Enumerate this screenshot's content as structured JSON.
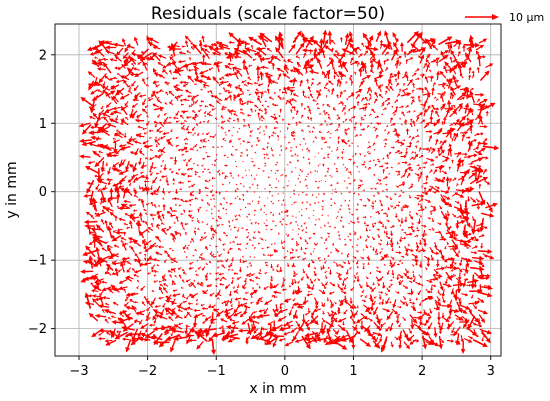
{
  "chart_data": {
    "type": "quiver",
    "title": "Residuals (scale factor=50)",
    "xlabel": "x in mm",
    "ylabel": "y in mm",
    "xlim": [
      -3.35,
      3.15
    ],
    "ylim": [
      -2.4,
      2.45
    ],
    "xticks": [
      -3,
      -2,
      -1,
      0,
      1,
      2,
      3
    ],
    "xtick_labels": [
      "−3",
      "−2",
      "−1",
      "0",
      "1",
      "2",
      "3"
    ],
    "yticks": [
      -2,
      -1,
      0,
      1,
      2
    ],
    "ytick_labels": [
      "−2",
      "−1",
      "0",
      "1",
      "2"
    ],
    "grid": true,
    "scale_factor": 50,
    "region": {
      "x": [
        -2.85,
        2.95
      ],
      "y": [
        -2.2,
        2.2
      ]
    },
    "arrow_color": "#ff0000",
    "reference_arrow": {
      "label": "10 µm",
      "length_um": 10
    },
    "vectors": [
      {
        "x": -2.8,
        "y": 1.9,
        "dx": 12,
        "dy": -4
      },
      {
        "x": -2.6,
        "y": 1.4,
        "dx": 10,
        "dy": 6
      },
      {
        "x": -2.4,
        "y": -1.9,
        "dx": 14,
        "dy": 5
      },
      {
        "x": -2.2,
        "y": 2.1,
        "dx": -8,
        "dy": 3
      },
      {
        "x": -1.9,
        "y": 1.2,
        "dx": 11,
        "dy": 2
      },
      {
        "x": -1.7,
        "y": -1.7,
        "dx": 9,
        "dy": -7
      },
      {
        "x": -1.5,
        "y": 0.6,
        "dx": 6,
        "dy": 4
      },
      {
        "x": -1.2,
        "y": 1.7,
        "dx": 10,
        "dy": -5
      },
      {
        "x": -1.0,
        "y": -0.6,
        "dx": -7,
        "dy": 6
      },
      {
        "x": -0.8,
        "y": 2.0,
        "dx": 12,
        "dy": 2
      },
      {
        "x": -0.5,
        "y": -1.5,
        "dx": 8,
        "dy": 5
      },
      {
        "x": -0.2,
        "y": 1.1,
        "dx": 7,
        "dy": -3
      },
      {
        "x": 0.0,
        "y": -0.3,
        "dx": 4,
        "dy": 2
      },
      {
        "x": 0.3,
        "y": 1.8,
        "dx": 10,
        "dy": 4
      },
      {
        "x": 0.6,
        "y": -1.9,
        "dx": 9,
        "dy": -6
      },
      {
        "x": 0.9,
        "y": 0.7,
        "dx": -6,
        "dy": 5
      },
      {
        "x": 1.2,
        "y": 2.1,
        "dx": 13,
        "dy": -2
      },
      {
        "x": 1.4,
        "y": -1.0,
        "dx": 8,
        "dy": 7
      },
      {
        "x": 1.7,
        "y": 1.4,
        "dx": 11,
        "dy": 3
      },
      {
        "x": 2.0,
        "y": -1.6,
        "dx": 12,
        "dy": 6
      },
      {
        "x": 2.2,
        "y": 0.2,
        "dx": 6,
        "dy": -4
      },
      {
        "x": 2.5,
        "y": 1.9,
        "dx": 10,
        "dy": -3
      },
      {
        "x": 2.7,
        "y": -0.8,
        "dx": -9,
        "dy": 7
      },
      {
        "x": 2.85,
        "y": 1.3,
        "dx": 8,
        "dy": 4
      }
    ]
  }
}
